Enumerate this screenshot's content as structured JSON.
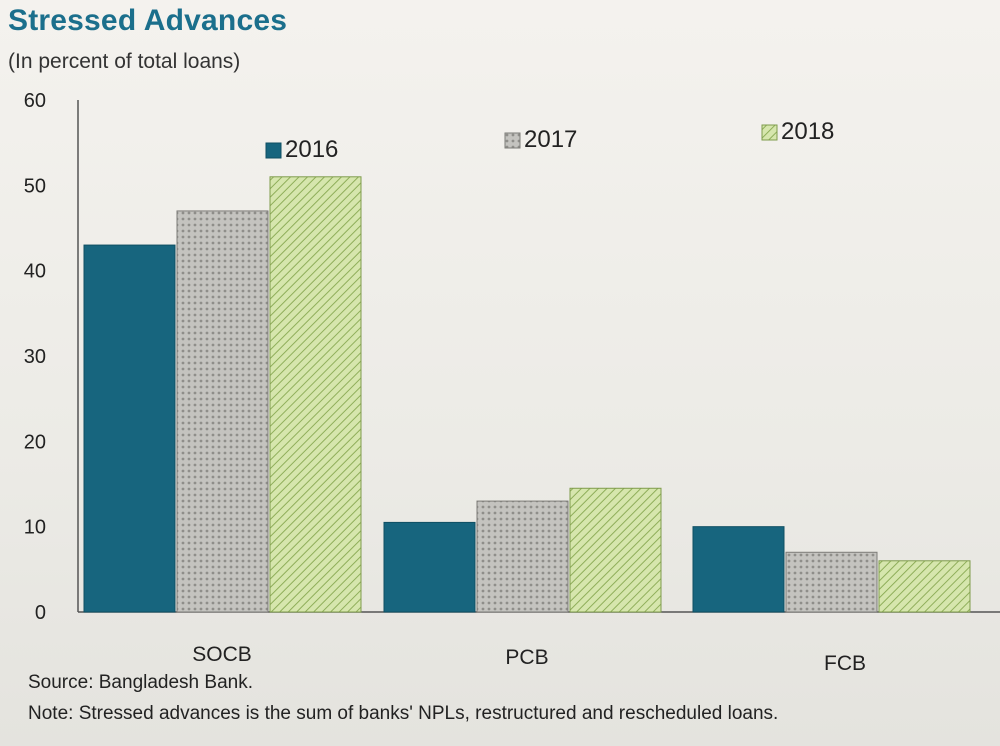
{
  "header": {
    "title": "Stressed Advances",
    "subtitle": "(In percent of total loans)"
  },
  "footer": {
    "source": "Source: Bangladesh Bank.",
    "note": "Note: Stressed advances is the sum of banks' NPLs, restructured and rescheduled loans."
  },
  "colors": {
    "series_2016": "#17657e",
    "series_2017": "#b9b8b4",
    "series_2018": "#c8dc9c",
    "text": "#222222"
  },
  "chart_data": {
    "type": "bar",
    "categories": [
      "SOCB",
      "PCB",
      "FCB"
    ],
    "series": [
      {
        "name": "2016",
        "values": [
          43,
          10.5,
          10
        ]
      },
      {
        "name": "2017",
        "values": [
          47,
          13,
          7
        ]
      },
      {
        "name": "2018",
        "values": [
          51,
          14.5,
          6
        ]
      }
    ],
    "yticks": [
      "0",
      "10",
      "20",
      "30",
      "40",
      "50",
      "60"
    ],
    "ylim": [
      0,
      60
    ],
    "grid": false,
    "legend_position": "top",
    "xlabel": "",
    "ylabel": ""
  }
}
